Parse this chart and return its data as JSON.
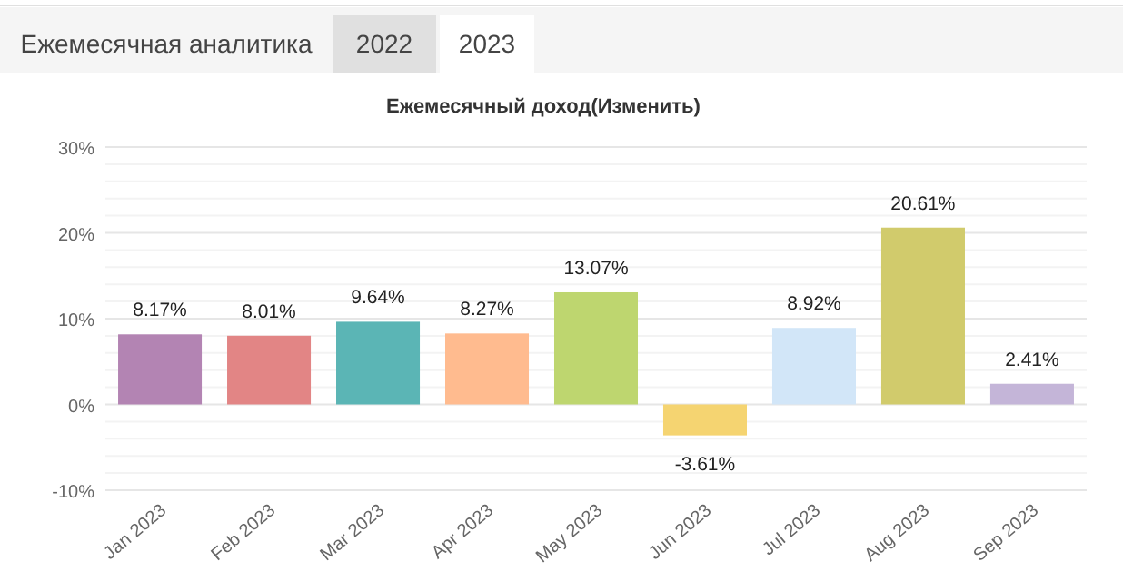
{
  "chart_data": {
    "type": "bar",
    "title": "Ежемесячный доход(Изменить)",
    "annotations": [
      "Ежемесячная аналитика",
      "2022",
      "2023"
    ],
    "categories": [
      "Jan 2023",
      "Feb 2023",
      "Mar 2023",
      "Apr 2023",
      "May 2023",
      "Jun 2023",
      "Jul 2023",
      "Aug 2023",
      "Sep 2023"
    ],
    "values": [
      8.17,
      8.01,
      9.64,
      8.27,
      13.07,
      -3.61,
      8.92,
      20.61,
      2.41
    ],
    "colors": [
      "#b384b3",
      "#e28585",
      "#5bb5b5",
      "#ffbb8f",
      "#bed66f",
      "#f5d471",
      "#d2e6f8",
      "#d1cb6c",
      "#c4b5d8"
    ],
    "value_labels": [
      "8.17%",
      "8.01%",
      "9.64%",
      "8.27%",
      "13.07%",
      "-3.61%",
      "8.92%",
      "20.61%",
      "2.41%"
    ],
    "ylim": [
      -10,
      30
    ],
    "yticks": [
      {
        "value": -10,
        "label": "-10%"
      },
      {
        "value": -8,
        "label": null
      },
      {
        "value": -6,
        "label": null
      },
      {
        "value": -4,
        "label": null
      },
      {
        "value": -2,
        "label": null
      },
      {
        "value": 0,
        "label": "0%"
      },
      {
        "value": 2,
        "label": null
      },
      {
        "value": 4,
        "label": null
      },
      {
        "value": 6,
        "label": null
      },
      {
        "value": 8,
        "label": null
      },
      {
        "value": 10,
        "label": "10%"
      },
      {
        "value": 12,
        "label": null
      },
      {
        "value": 14,
        "label": null
      },
      {
        "value": 16,
        "label": null
      },
      {
        "value": 18,
        "label": null
      },
      {
        "value": 20,
        "label": "20%"
      },
      {
        "value": 22,
        "label": null
      },
      {
        "value": 24,
        "label": null
      },
      {
        "value": 26,
        "label": null
      },
      {
        "value": 28,
        "label": null
      },
      {
        "value": 30,
        "label": "30%"
      }
    ],
    "grid": true
  }
}
